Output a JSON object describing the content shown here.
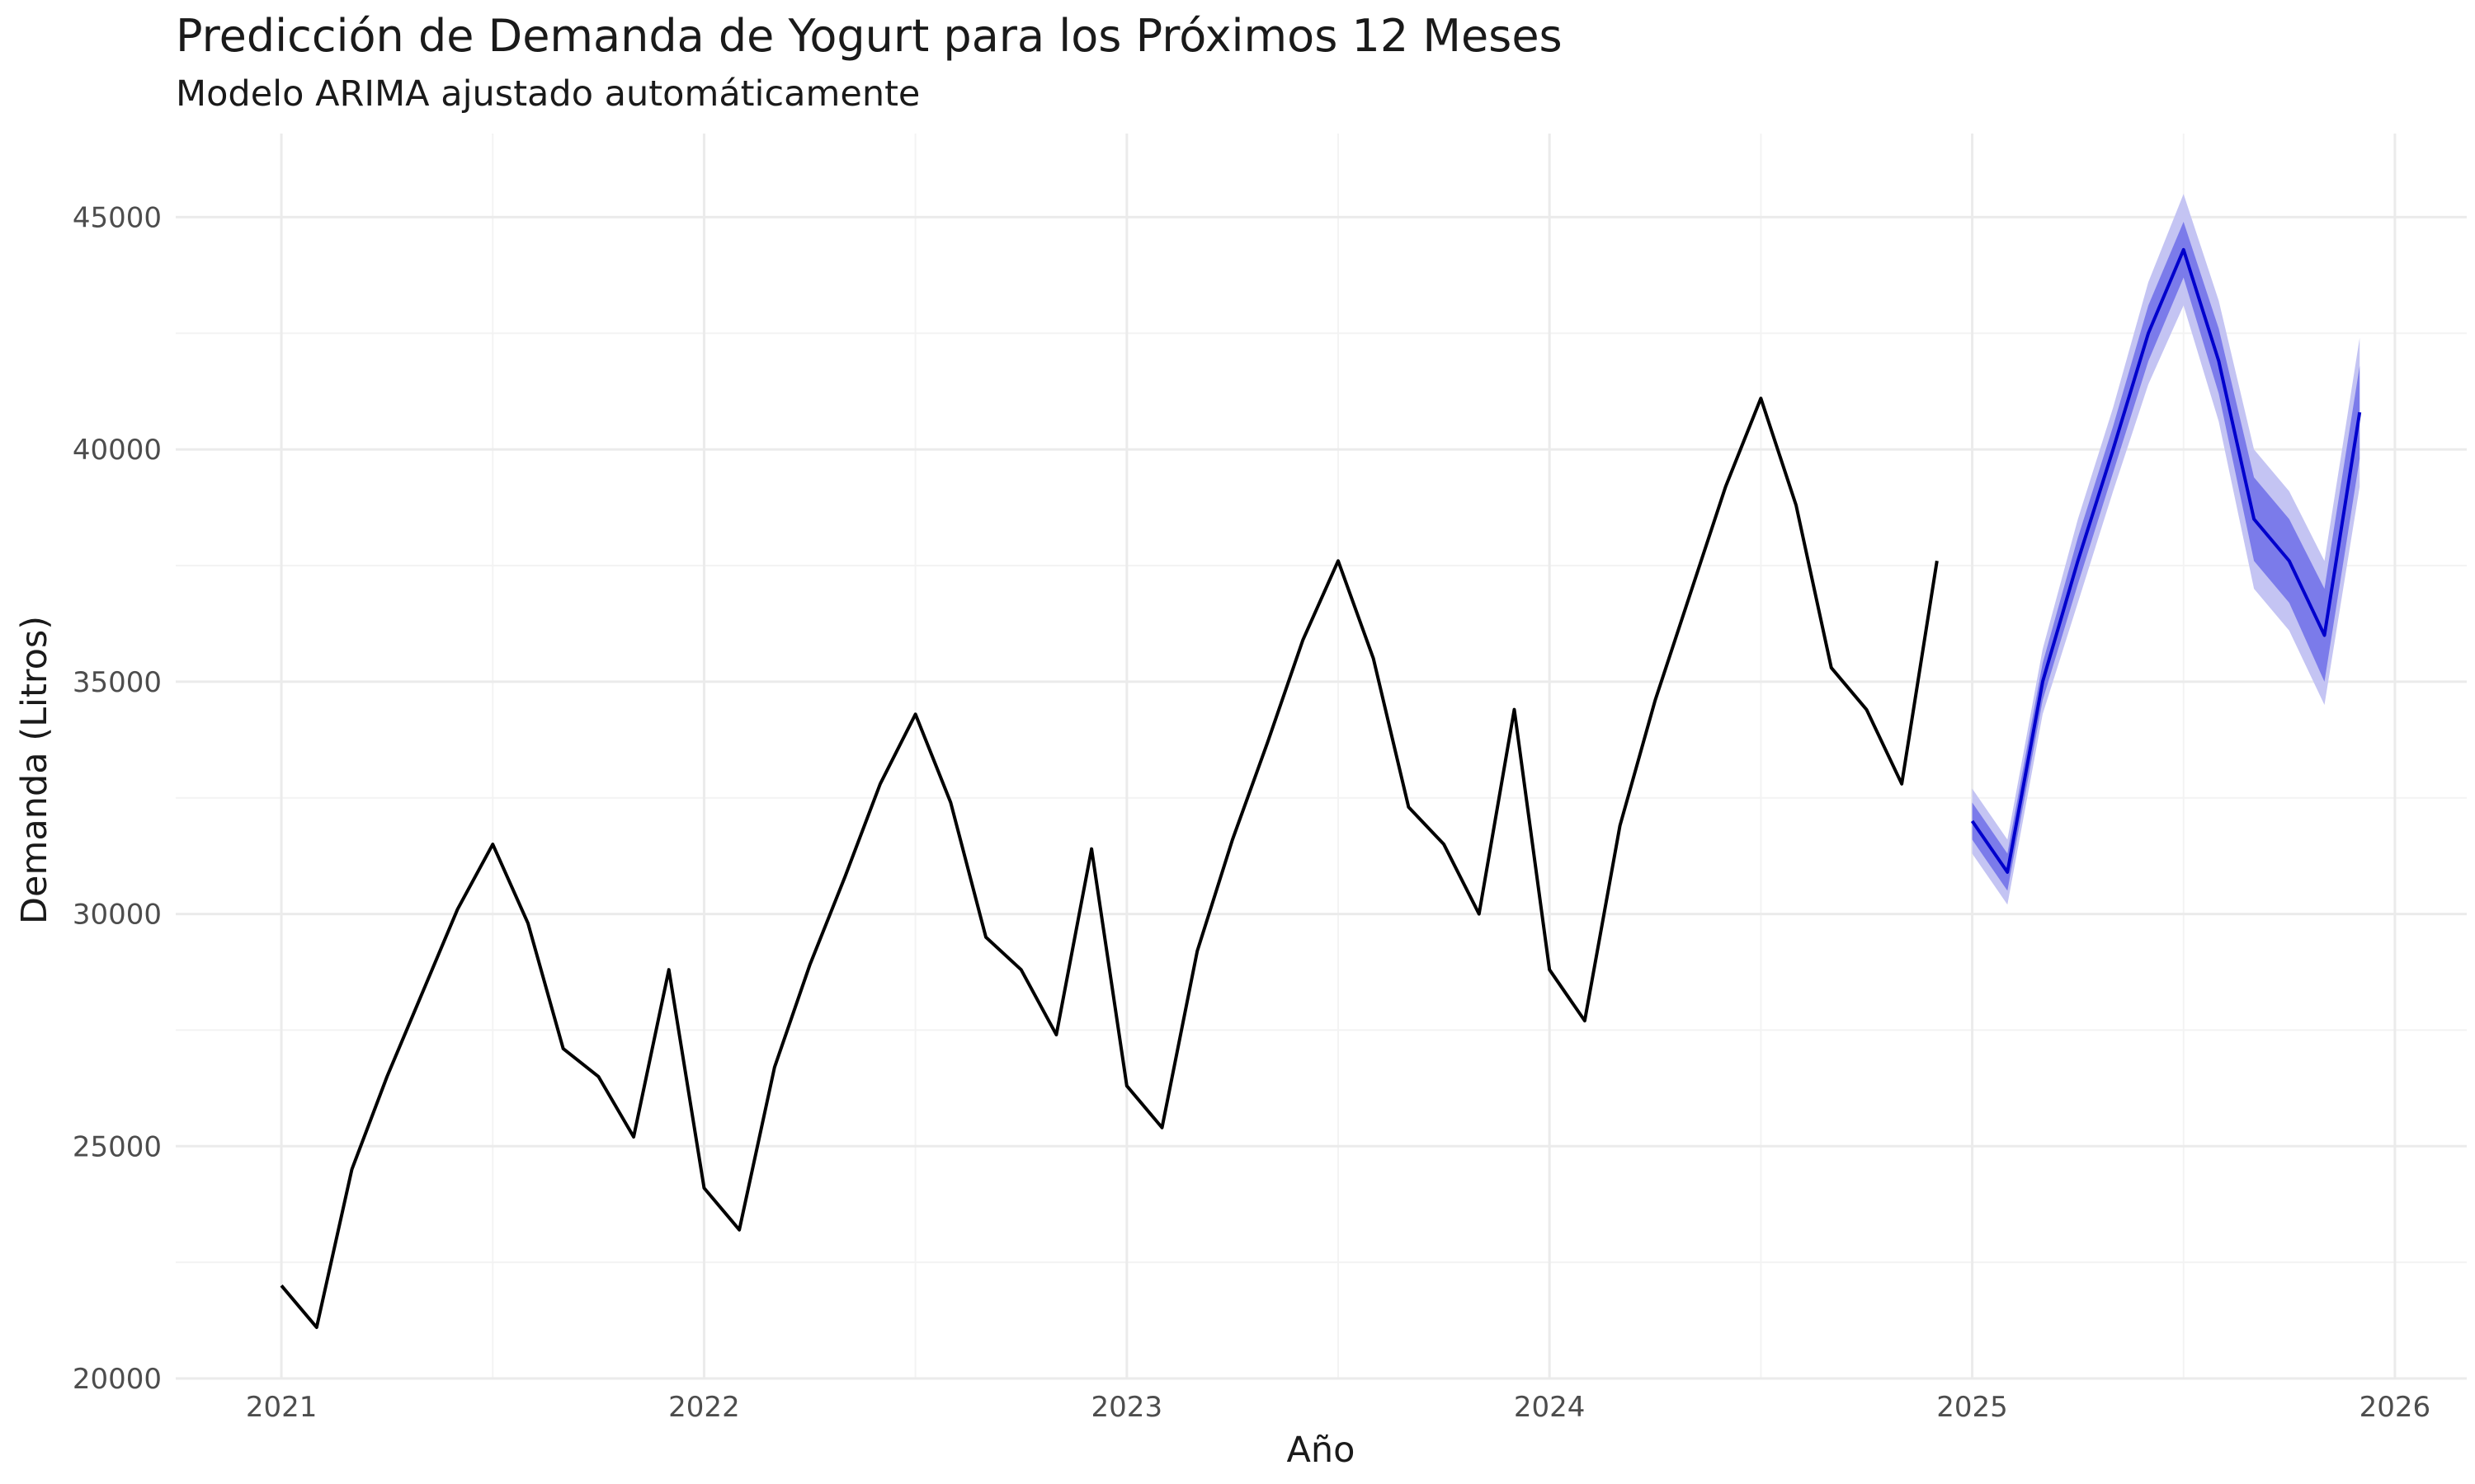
{
  "chart_data": {
    "type": "line",
    "title": "Predicción de Demanda de Yogurt para los Próximos 12 Meses",
    "subtitle": "Modelo ARIMA ajustado automáticamente",
    "xlabel": "Año",
    "ylabel": "Demanda (Litros)",
    "xlim": [
      2020.75,
      2026.17
    ],
    "ylim": [
      20000,
      46800
    ],
    "x_ticks": [
      "2021",
      "2022",
      "2023",
      "2024",
      "2025",
      "2026"
    ],
    "y_ticks": [
      "20000",
      "25000",
      "30000",
      "35000",
      "40000",
      "45000"
    ],
    "grid": true,
    "legend": "none",
    "colors": {
      "history": "#000000",
      "forecast": "#0000cc",
      "band80": "#7b7bea",
      "band95": "#c4c4f3",
      "grid_major": "#ebebeb",
      "grid_minor": "#f3f3f3"
    },
    "series": [
      {
        "role": "history",
        "x": [
          "2021-01",
          "2021-02",
          "2021-03",
          "2021-04",
          "2021-05",
          "2021-06",
          "2021-07",
          "2021-08",
          "2021-09",
          "2021-10",
          "2021-11",
          "2021-12",
          "2022-01",
          "2022-02",
          "2022-03",
          "2022-04",
          "2022-05",
          "2022-06",
          "2022-07",
          "2022-08",
          "2022-09",
          "2022-10",
          "2022-11",
          "2022-12",
          "2023-01",
          "2023-02",
          "2023-03",
          "2023-04",
          "2023-05",
          "2023-06",
          "2023-07",
          "2023-08",
          "2023-09",
          "2023-10",
          "2023-11",
          "2023-12",
          "2024-01",
          "2024-02",
          "2024-03",
          "2024-04",
          "2024-05",
          "2024-06",
          "2024-07",
          "2024-08",
          "2024-09",
          "2024-10",
          "2024-11",
          "2024-12"
        ],
        "values": [
          22000,
          21100,
          24500,
          26500,
          28300,
          30100,
          31500,
          29800,
          27100,
          26500,
          25200,
          28800,
          24100,
          23200,
          26700,
          28900,
          30800,
          32800,
          34300,
          32400,
          29500,
          28800,
          27400,
          31400,
          26300,
          25400,
          29200,
          31600,
          33700,
          35900,
          37600,
          35500,
          32300,
          31500,
          30000,
          34400,
          28800,
          27700,
          31900,
          34600,
          36900,
          39200,
          41100,
          38800,
          35300,
          34400,
          32800,
          37600
        ]
      },
      {
        "role": "forecast",
        "x": [
          "2025-01",
          "2025-02",
          "2025-03",
          "2025-04",
          "2025-05",
          "2025-06",
          "2025-07",
          "2025-08",
          "2025-09",
          "2025-10",
          "2025-11",
          "2025-12"
        ],
        "values": [
          32000,
          30900,
          35000,
          37600,
          40000,
          42500,
          44300,
          41900,
          38500,
          37600,
          36000,
          40800
        ],
        "lo80": [
          31600,
          30500,
          34600,
          37100,
          39500,
          41900,
          43700,
          41200,
          37600,
          36700,
          35000,
          39800
        ],
        "hi80": [
          32400,
          31300,
          35400,
          38100,
          40500,
          43100,
          44900,
          42600,
          39400,
          38500,
          37000,
          41800
        ],
        "lo95": [
          31300,
          30200,
          34300,
          36700,
          39100,
          41400,
          43100,
          40600,
          37000,
          36100,
          34500,
          39200
        ],
        "hi95": [
          32700,
          31600,
          35700,
          38500,
          40900,
          43600,
          45500,
          43200,
          40000,
          39100,
          37600,
          42400
        ]
      }
    ]
  }
}
